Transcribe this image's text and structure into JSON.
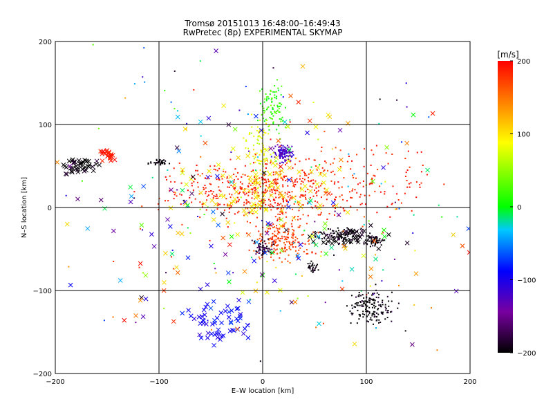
{
  "chart_data": {
    "type": "scatter",
    "title": "Tromsø 20151013 16:48:00–16:49:43",
    "subtitle": "RwPretec (8p) EXPERIMENTAL SKYMAP",
    "xlabel": "E–W location [km]",
    "ylabel": "N–S location [km]",
    "xlim": [
      -200,
      200
    ],
    "ylim": [
      -200,
      200
    ],
    "xticks": [
      "−200",
      "−100",
      "0",
      "100",
      "200"
    ],
    "yticks": [
      "−200",
      "−100",
      "0",
      "100",
      "200"
    ],
    "grid": true,
    "colorbar": {
      "label": "[m/s]",
      "range": [
        -200,
        200
      ],
      "ticks": [
        "200",
        "100",
        "0",
        "−100",
        "−200"
      ],
      "colors": [
        "#000000",
        "#7800a0",
        "#0000ff",
        "#00c8ff",
        "#00ff00",
        "#ffff00",
        "#ff8000",
        "#ff0000"
      ]
    },
    "markers": [
      "dot",
      "x"
    ],
    "clusters": [
      {
        "x": 20,
        "y": 65,
        "spread": [
          7,
          8
        ],
        "count": 110,
        "velocity": -130,
        "marker": "dot"
      },
      {
        "x": 12,
        "y": 120,
        "spread": [
          12,
          25
        ],
        "count": 90,
        "velocity": 10,
        "marker": "dot"
      },
      {
        "x": -2,
        "y": 60,
        "spread": [
          10,
          35
        ],
        "count": 90,
        "velocity": 60,
        "marker": "dot"
      },
      {
        "x": 5,
        "y": 20,
        "spread": [
          45,
          30
        ],
        "count": 330,
        "velocity": 185,
        "marker": "dot"
      },
      {
        "x": 20,
        "y": -40,
        "spread": [
          25,
          20
        ],
        "count": 200,
        "velocity": 170,
        "marker": "dot"
      },
      {
        "x": 0,
        "y": -50,
        "spread": [
          8,
          8
        ],
        "count": 60,
        "velocity": -180,
        "marker": "dot"
      },
      {
        "x": 75,
        "y": -35,
        "spread": [
          20,
          8
        ],
        "count": 110,
        "velocity": -195,
        "marker": "dot"
      },
      {
        "x": 108,
        "y": -40,
        "spread": [
          8,
          5
        ],
        "count": 60,
        "velocity": -200,
        "marker": "dot"
      },
      {
        "x": 105,
        "y": -120,
        "spread": [
          18,
          18
        ],
        "count": 160,
        "velocity": -200,
        "marker": "dot"
      },
      {
        "x": 48,
        "y": -72,
        "spread": [
          5,
          6
        ],
        "count": 30,
        "velocity": -200,
        "marker": "dot"
      },
      {
        "x": -100,
        "y": 55,
        "spread": [
          8,
          3
        ],
        "count": 35,
        "velocity": -200,
        "marker": "dot"
      },
      {
        "x": 60,
        "y": 30,
        "spread": [
          50,
          40
        ],
        "count": 140,
        "velocity": 180,
        "marker": "dot"
      },
      {
        "x": -60,
        "y": 20,
        "spread": [
          40,
          25
        ],
        "count": 100,
        "velocity": 190,
        "marker": "dot"
      },
      {
        "x": 130,
        "y": 30,
        "spread": [
          40,
          30
        ],
        "count": 50,
        "velocity": 190,
        "marker": "dot"
      },
      {
        "x": -175,
        "y": 50,
        "spread": [
          15,
          10
        ],
        "count": 45,
        "velocity": -200,
        "marker": "x"
      },
      {
        "x": -150,
        "y": 65,
        "spread": [
          8,
          6
        ],
        "count": 25,
        "velocity": 190,
        "marker": "x"
      },
      {
        "x": -45,
        "y": -140,
        "spread": [
          30,
          25
        ],
        "count": 60,
        "velocity": -100,
        "marker": "x"
      },
      {
        "x": 80,
        "y": -35,
        "spread": [
          25,
          10
        ],
        "count": 40,
        "velocity": -200,
        "marker": "x"
      },
      {
        "x": 0,
        "y": 20,
        "spread": [
          60,
          40
        ],
        "count": 90,
        "velocity": 80,
        "marker": "x"
      },
      {
        "x": 0,
        "y": 0,
        "spread": [
          150,
          130
        ],
        "count": 170,
        "velocity": 0,
        "marker": "x"
      },
      {
        "x": 0,
        "y": 0,
        "spread": [
          170,
          170
        ],
        "count": 180,
        "velocity": 0,
        "marker": "dot"
      }
    ]
  }
}
